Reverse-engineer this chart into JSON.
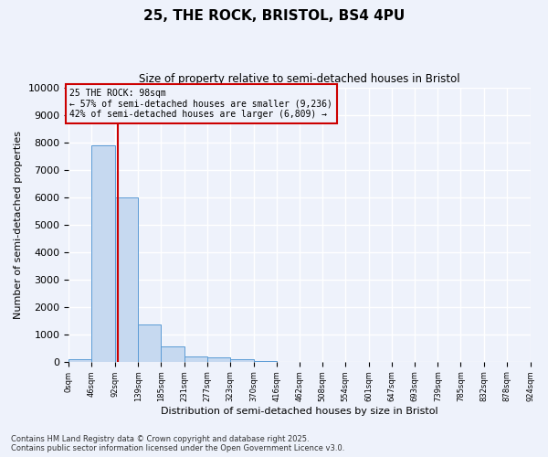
{
  "title1": "25, THE ROCK, BRISTOL, BS4 4PU",
  "title2": "Size of property relative to semi-detached houses in Bristol",
  "xlabel": "Distribution of semi-detached houses by size in Bristol",
  "ylabel": "Number of semi-detached properties",
  "annotation_title": "25 THE ROCK: 98sqm",
  "annotation_line1": "← 57% of semi-detached houses are smaller (9,236)",
  "annotation_line2": "42% of semi-detached houses are larger (6,809) →",
  "footer1": "Contains HM Land Registry data © Crown copyright and database right 2025.",
  "footer2": "Contains public sector information licensed under the Open Government Licence v3.0.",
  "property_size": 98,
  "bins": [
    0,
    46,
    92,
    139,
    185,
    231,
    277,
    323,
    370,
    416,
    462,
    508,
    554,
    601,
    647,
    693,
    739,
    785,
    832,
    878,
    924
  ],
  "bar_values": [
    100,
    7900,
    6000,
    1350,
    550,
    200,
    150,
    80,
    30,
    5,
    2,
    1,
    0,
    0,
    0,
    0,
    0,
    0,
    0,
    0
  ],
  "bar_color": "#c6d9f0",
  "bar_edge_color": "#5b9bd5",
  "vline_color": "#cc0000",
  "annotation_box_color": "#cc0000",
  "background_color": "#eef2fb",
  "grid_color": "#ffffff",
  "ylim": [
    0,
    10000
  ],
  "yticks": [
    0,
    1000,
    2000,
    3000,
    4000,
    5000,
    6000,
    7000,
    8000,
    9000,
    10000
  ]
}
